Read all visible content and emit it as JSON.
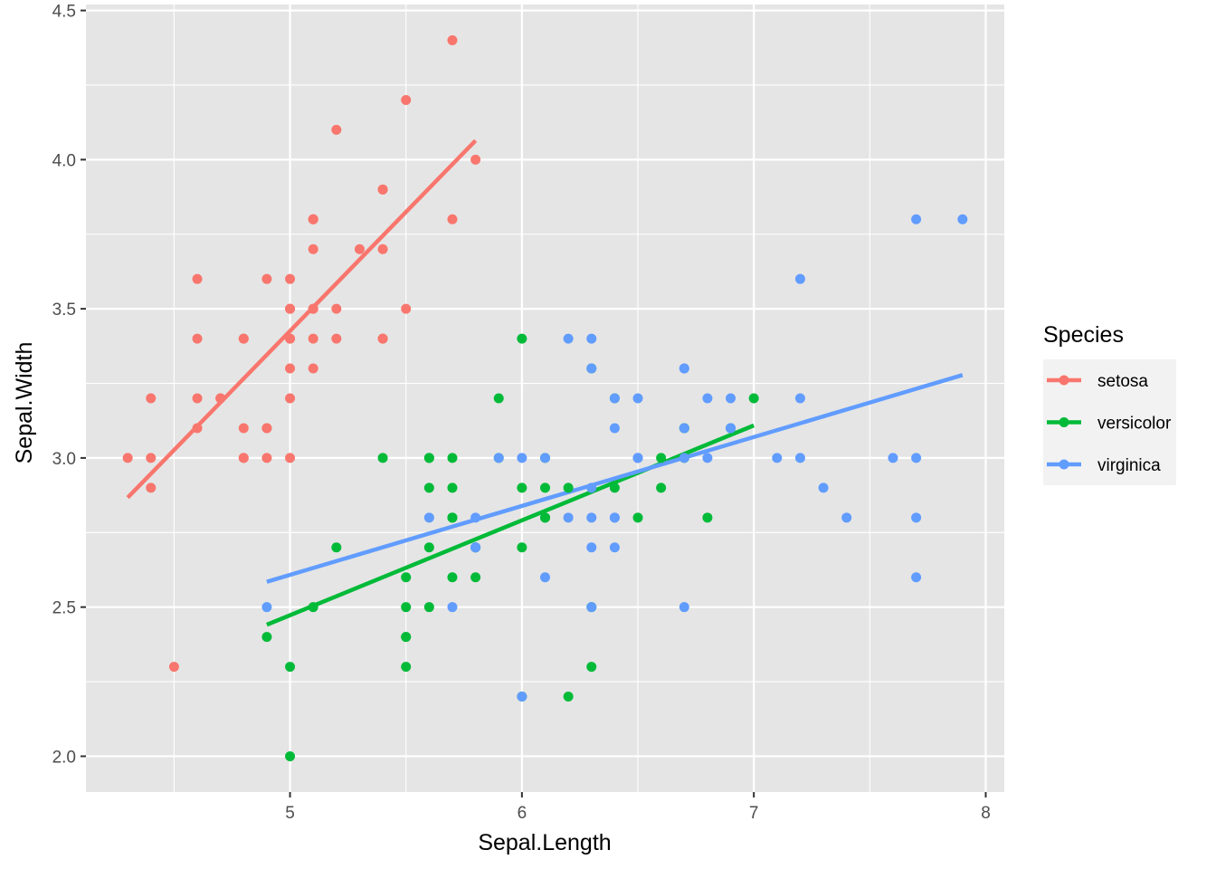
{
  "chart_data": {
    "type": "scatter",
    "title": "",
    "xlabel": "Sepal.Length",
    "ylabel": "Sepal.Width",
    "xlim": [
      4.12,
      8.08
    ],
    "ylim": [
      1.88,
      4.52
    ],
    "x_ticks": [
      5,
      6,
      7,
      8
    ],
    "x_tick_labels": [
      "5",
      "6",
      "7",
      "8"
    ],
    "y_ticks": [
      2.0,
      2.5,
      3.0,
      3.5,
      4.0,
      4.5
    ],
    "y_tick_labels": [
      "2.0",
      "2.5",
      "3.0",
      "3.5",
      "4.0",
      "4.5"
    ],
    "grid": true,
    "panel_background": "#e5e5e5",
    "grid_color": "#ffffff",
    "legend": {
      "title": "Species",
      "placement": "right",
      "labels": [
        "setosa",
        "versicolor",
        "virginica"
      ]
    },
    "series": [
      {
        "name": "setosa",
        "color": "#f8766d",
        "points": [
          [
            5.1,
            3.5
          ],
          [
            4.9,
            3.0
          ],
          [
            4.7,
            3.2
          ],
          [
            4.6,
            3.1
          ],
          [
            5.0,
            3.6
          ],
          [
            5.4,
            3.9
          ],
          [
            4.6,
            3.4
          ],
          [
            5.0,
            3.4
          ],
          [
            4.4,
            2.9
          ],
          [
            4.9,
            3.1
          ],
          [
            5.4,
            3.7
          ],
          [
            4.8,
            3.4
          ],
          [
            4.8,
            3.0
          ],
          [
            4.3,
            3.0
          ],
          [
            5.8,
            4.0
          ],
          [
            5.7,
            4.4
          ],
          [
            5.4,
            3.9
          ],
          [
            5.1,
            3.5
          ],
          [
            5.7,
            3.8
          ],
          [
            5.1,
            3.8
          ],
          [
            5.4,
            3.4
          ],
          [
            5.1,
            3.7
          ],
          [
            4.6,
            3.6
          ],
          [
            5.1,
            3.3
          ],
          [
            4.8,
            3.4
          ],
          [
            5.0,
            3.0
          ],
          [
            5.0,
            3.4
          ],
          [
            5.2,
            3.5
          ],
          [
            5.2,
            3.4
          ],
          [
            4.7,
            3.2
          ],
          [
            4.8,
            3.1
          ],
          [
            5.4,
            3.4
          ],
          [
            5.2,
            4.1
          ],
          [
            5.5,
            4.2
          ],
          [
            4.9,
            3.1
          ],
          [
            5.0,
            3.2
          ],
          [
            5.5,
            3.5
          ],
          [
            4.9,
            3.6
          ],
          [
            4.4,
            3.0
          ],
          [
            5.1,
            3.4
          ],
          [
            5.0,
            3.5
          ],
          [
            4.5,
            2.3
          ],
          [
            4.4,
            3.2
          ],
          [
            5.0,
            3.5
          ],
          [
            5.1,
            3.8
          ],
          [
            4.8,
            3.0
          ],
          [
            5.1,
            3.8
          ],
          [
            4.6,
            3.2
          ],
          [
            5.3,
            3.7
          ],
          [
            5.0,
            3.3
          ]
        ],
        "fit": {
          "x": [
            4.3,
            5.8
          ],
          "y": [
            2.867,
            4.064
          ]
        }
      },
      {
        "name": "versicolor",
        "color": "#00ba38",
        "points": [
          [
            7.0,
            3.2
          ],
          [
            6.4,
            3.2
          ],
          [
            6.9,
            3.1
          ],
          [
            5.5,
            2.3
          ],
          [
            6.5,
            2.8
          ],
          [
            5.7,
            2.8
          ],
          [
            6.3,
            3.3
          ],
          [
            4.9,
            2.4
          ],
          [
            6.6,
            2.9
          ],
          [
            5.2,
            2.7
          ],
          [
            5.0,
            2.0
          ],
          [
            5.9,
            3.0
          ],
          [
            6.0,
            2.2
          ],
          [
            6.1,
            2.9
          ],
          [
            5.6,
            2.9
          ],
          [
            6.7,
            3.1
          ],
          [
            5.6,
            3.0
          ],
          [
            5.8,
            2.7
          ],
          [
            6.2,
            2.2
          ],
          [
            5.6,
            2.5
          ],
          [
            5.9,
            3.2
          ],
          [
            6.1,
            2.8
          ],
          [
            6.3,
            2.5
          ],
          [
            6.1,
            2.8
          ],
          [
            6.4,
            2.9
          ],
          [
            6.6,
            3.0
          ],
          [
            6.8,
            2.8
          ],
          [
            6.7,
            3.0
          ],
          [
            6.0,
            2.9
          ],
          [
            5.7,
            2.6
          ],
          [
            5.5,
            2.4
          ],
          [
            5.5,
            2.4
          ],
          [
            5.8,
            2.7
          ],
          [
            6.0,
            2.7
          ],
          [
            5.4,
            3.0
          ],
          [
            6.0,
            3.4
          ],
          [
            6.7,
            3.1
          ],
          [
            6.3,
            2.3
          ],
          [
            5.6,
            3.0
          ],
          [
            5.5,
            2.5
          ],
          [
            5.5,
            2.6
          ],
          [
            6.1,
            3.0
          ],
          [
            5.8,
            2.6
          ],
          [
            5.0,
            2.3
          ],
          [
            5.6,
            2.7
          ],
          [
            5.7,
            3.0
          ],
          [
            5.7,
            2.9
          ],
          [
            6.2,
            2.9
          ],
          [
            5.1,
            2.5
          ],
          [
            5.7,
            2.8
          ]
        ],
        "fit": {
          "x": [
            4.9,
            7.0
          ],
          "y": [
            2.441,
            3.109
          ]
        }
      },
      {
        "name": "virginica",
        "color": "#619cff",
        "points": [
          [
            6.3,
            3.3
          ],
          [
            5.8,
            2.7
          ],
          [
            7.1,
            3.0
          ],
          [
            6.3,
            2.9
          ],
          [
            6.5,
            3.0
          ],
          [
            7.6,
            3.0
          ],
          [
            4.9,
            2.5
          ],
          [
            7.3,
            2.9
          ],
          [
            6.7,
            2.5
          ],
          [
            7.2,
            3.6
          ],
          [
            6.5,
            3.2
          ],
          [
            6.4,
            2.7
          ],
          [
            6.8,
            3.0
          ],
          [
            5.7,
            2.5
          ],
          [
            5.8,
            2.8
          ],
          [
            6.4,
            3.2
          ],
          [
            6.5,
            3.0
          ],
          [
            7.7,
            3.8
          ],
          [
            7.7,
            2.6
          ],
          [
            6.0,
            2.2
          ],
          [
            6.9,
            3.2
          ],
          [
            5.6,
            2.8
          ],
          [
            7.7,
            2.8
          ],
          [
            6.3,
            2.7
          ],
          [
            6.7,
            3.3
          ],
          [
            7.2,
            3.2
          ],
          [
            6.2,
            2.8
          ],
          [
            6.1,
            3.0
          ],
          [
            6.4,
            2.8
          ],
          [
            7.2,
            3.0
          ],
          [
            7.4,
            2.8
          ],
          [
            7.9,
            3.8
          ],
          [
            6.4,
            2.8
          ],
          [
            6.3,
            2.8
          ],
          [
            6.1,
            2.6
          ],
          [
            7.7,
            3.0
          ],
          [
            6.3,
            3.4
          ],
          [
            6.4,
            3.1
          ],
          [
            6.0,
            3.0
          ],
          [
            6.9,
            3.1
          ],
          [
            6.7,
            3.1
          ],
          [
            6.9,
            3.1
          ],
          [
            5.8,
            2.7
          ],
          [
            6.8,
            3.2
          ],
          [
            6.7,
            3.3
          ],
          [
            6.7,
            3.0
          ],
          [
            6.3,
            2.5
          ],
          [
            6.5,
            3.0
          ],
          [
            6.2,
            3.4
          ],
          [
            5.9,
            3.0
          ]
        ],
        "fit": {
          "x": [
            4.9,
            7.9
          ],
          "y": [
            2.585,
            3.278
          ]
        }
      }
    ]
  }
}
